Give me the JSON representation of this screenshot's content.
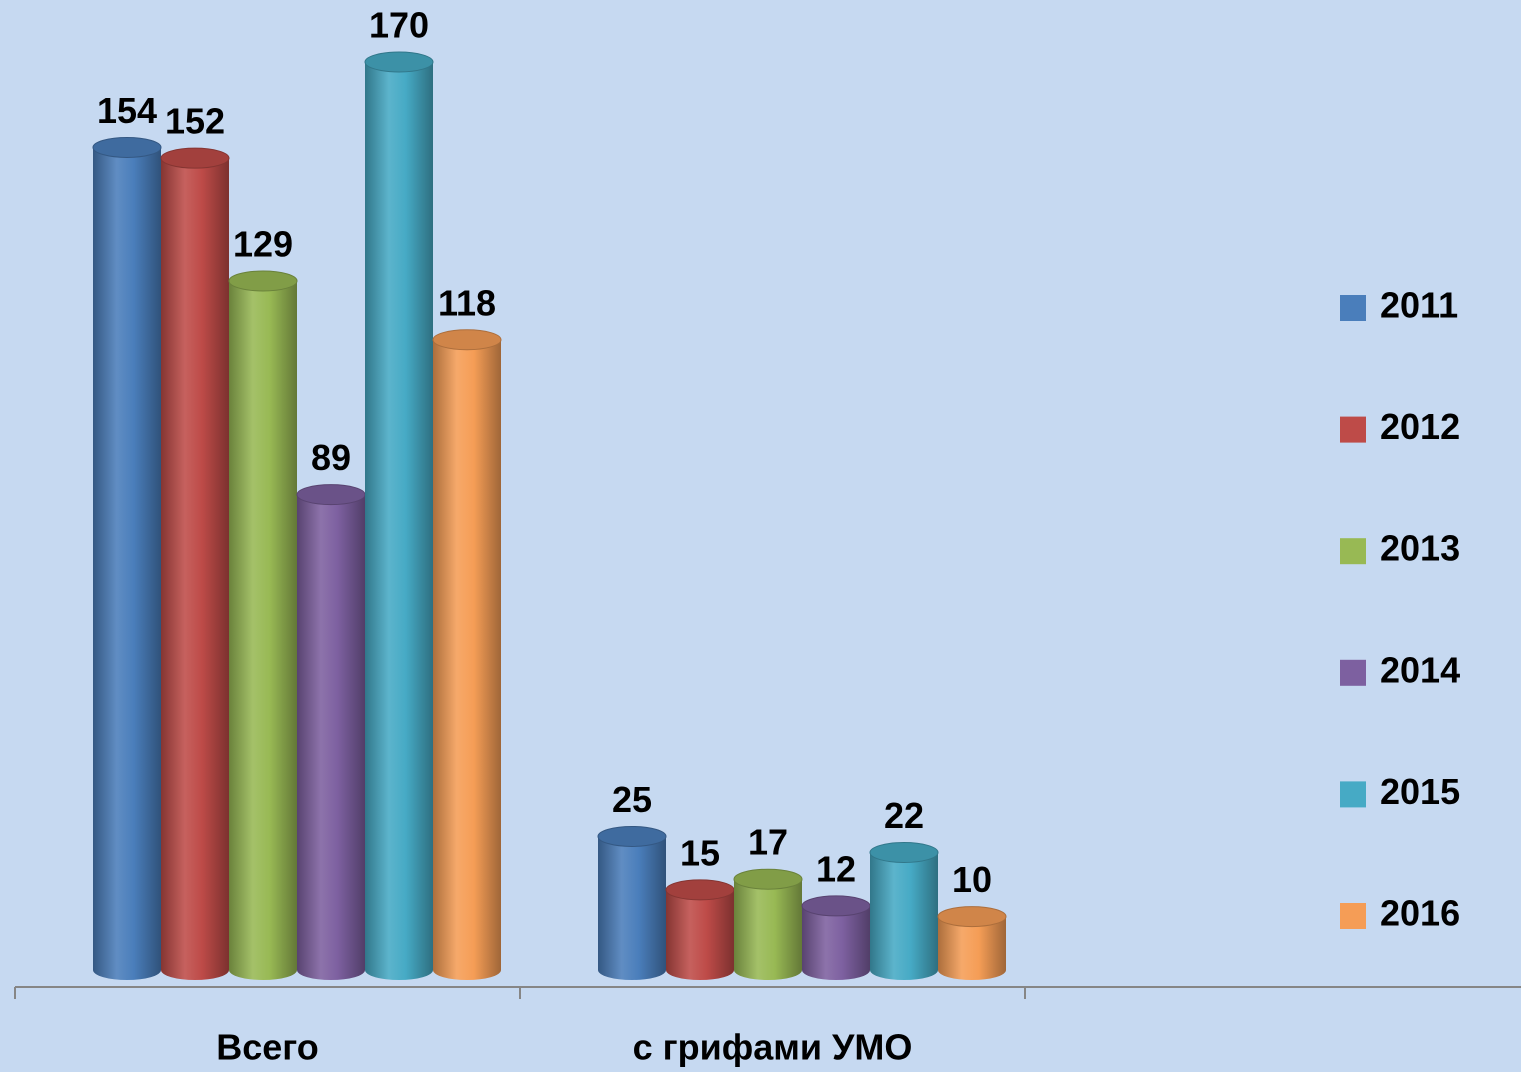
{
  "chart_data": {
    "type": "bar",
    "categories": [
      "Всего",
      "с грифами УМО"
    ],
    "series": [
      {
        "name": "2011",
        "color": "#4a7ebb",
        "values": [
          154,
          25
        ]
      },
      {
        "name": "2012",
        "color": "#be4b48",
        "values": [
          152,
          15
        ]
      },
      {
        "name": "2013",
        "color": "#98b954",
        "values": [
          129,
          17
        ]
      },
      {
        "name": "2014",
        "color": "#7d60a0",
        "values": [
          89,
          12
        ]
      },
      {
        "name": "2015",
        "color": "#46aac5",
        "values": [
          170,
          22
        ]
      },
      {
        "name": "2016",
        "color": "#f59d56",
        "values": [
          118,
          10
        ]
      }
    ],
    "legend": "right"
  }
}
